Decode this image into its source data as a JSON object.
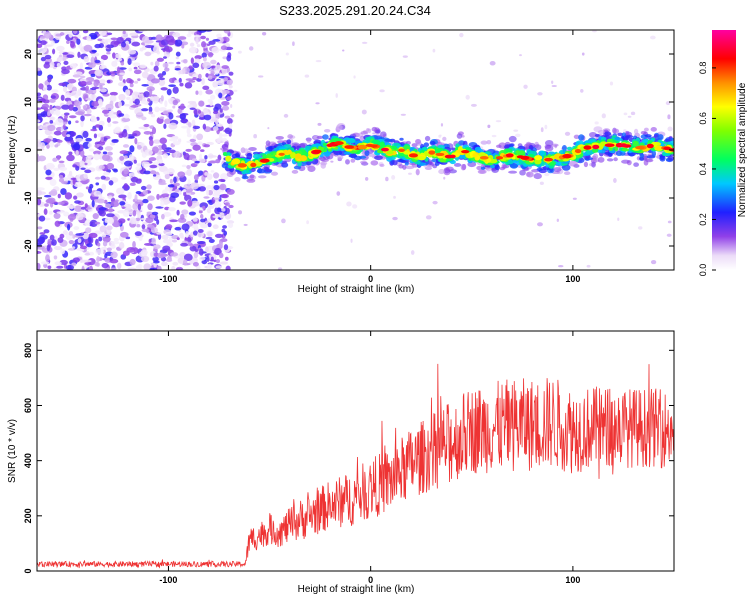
{
  "title": "S233.2025.291.20.24.C34",
  "chart_data": [
    {
      "type": "heatmap",
      "name": "spectrogram",
      "xlabel": "Height of straight line (km)",
      "ylabel": "Frequency (Hz)",
      "xlim": [
        -165,
        150
      ],
      "ylim": [
        -25,
        25
      ],
      "xticks": [
        -100,
        0,
        100
      ],
      "yticks": [
        -20,
        -10,
        0,
        10,
        20
      ],
      "noise_region_x": [
        -165,
        -69
      ],
      "signal_start_x": -72,
      "ridge": {
        "x": [
          -72,
          -66,
          -60,
          -55,
          -50,
          -45,
          -40,
          -35,
          -30,
          -25,
          -20,
          -15,
          -10,
          -5,
          0,
          5,
          10,
          15,
          20,
          25,
          30,
          35,
          40,
          45,
          50,
          55,
          60,
          65,
          70,
          75,
          80,
          85,
          90,
          95,
          100,
          105,
          110,
          115,
          120,
          125,
          130,
          135,
          140,
          145,
          150
        ],
        "y": [
          -1,
          -3,
          -3.5,
          -2.5,
          -2,
          -1,
          -0.5,
          -1.5,
          -1,
          0,
          1,
          1.5,
          0.5,
          0.5,
          1,
          0.5,
          -0.5,
          0,
          -1,
          -1.5,
          -0.5,
          -1,
          -1.5,
          0,
          -1,
          -1.5,
          -2,
          -1.5,
          -1,
          -1.5,
          -2,
          -2,
          -2,
          -1.5,
          -1,
          0.5,
          0.5,
          1,
          1,
          1,
          0.5,
          0.5,
          1,
          0.5,
          0
        ]
      },
      "colorbar": {
        "label": "Normalized spectral amplitude",
        "ticks": [
          0.0,
          0.2,
          0.4,
          0.6,
          0.8
        ],
        "tick_labels": [
          "0.0",
          "0.2",
          "0.4",
          "0.6",
          "0.8"
        ],
        "range": [
          0,
          0.95
        ]
      }
    },
    {
      "type": "line",
      "name": "snr",
      "xlabel": "Height of straight line (km)",
      "ylabel": "SNR (10 * v/v)",
      "xlim": [
        -165,
        150
      ],
      "ylim": [
        0,
        870
      ],
      "xticks": [
        -100,
        0,
        100
      ],
      "yticks": [
        0,
        200,
        400,
        600,
        800
      ],
      "color": "#ee3333",
      "envelope": {
        "x": [
          -165,
          -140,
          -110,
          -80,
          -62,
          -60,
          -55,
          -50,
          -45,
          -40,
          -35,
          -30,
          -20,
          -10,
          0,
          10,
          20,
          30,
          40,
          50,
          60,
          70,
          80,
          90,
          100,
          110,
          120,
          130,
          140,
          150
        ],
        "mean": [
          25,
          25,
          25,
          25,
          25,
          110,
          130,
          150,
          140,
          165,
          185,
          200,
          240,
          260,
          300,
          330,
          390,
          430,
          470,
          510,
          520,
          530,
          530,
          540,
          510,
          520,
          520,
          520,
          520,
          510
        ],
        "spread": [
          10,
          10,
          10,
          10,
          10,
          50,
          50,
          55,
          55,
          65,
          75,
          80,
          90,
          100,
          110,
          120,
          130,
          140,
          150,
          160,
          165,
          170,
          170,
          170,
          160,
          150,
          150,
          145,
          145,
          140
        ]
      }
    }
  ]
}
